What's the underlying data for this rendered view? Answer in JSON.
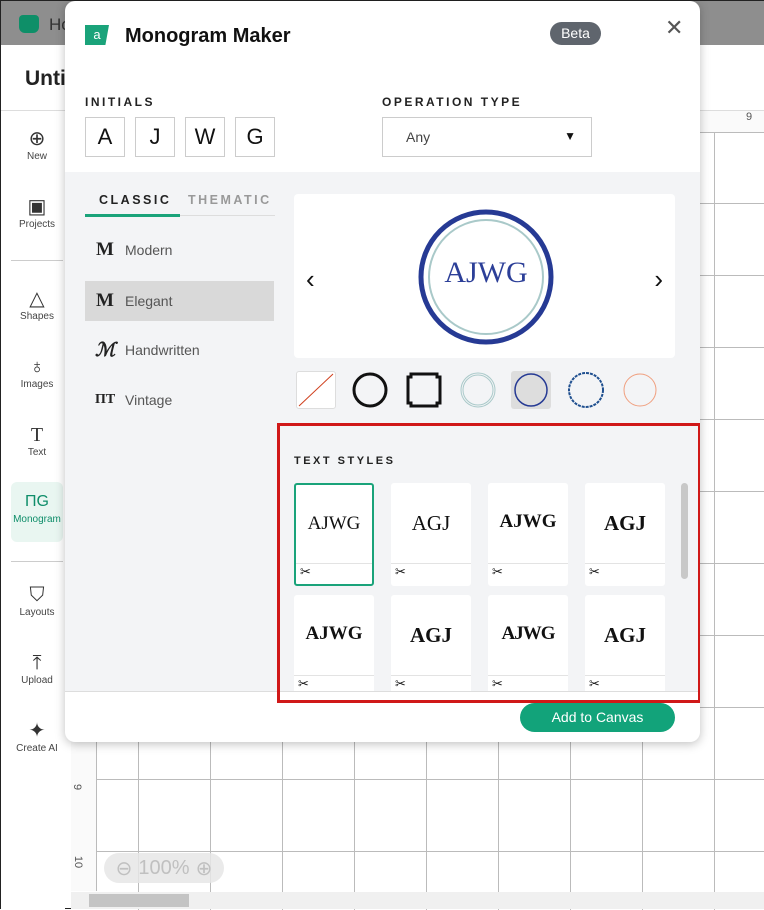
{
  "app": {
    "home_label": "Ho",
    "doc_title": "Unti",
    "ruler_top": "9",
    "ruler_left": [
      "9",
      "10"
    ],
    "zoom_level": "100%"
  },
  "sidebar": {
    "items": [
      {
        "label": "New",
        "icon": "plus-circle-icon"
      },
      {
        "label": "Projects",
        "icon": "projects-icon"
      },
      {
        "label": "Shapes",
        "icon": "shapes-icon"
      },
      {
        "label": "Images",
        "icon": "balloon-icon"
      },
      {
        "label": "Text",
        "icon": "text-icon"
      },
      {
        "label": "Monogram",
        "icon": "monogram-icon",
        "active": true
      },
      {
        "label": "Layouts",
        "icon": "tshirt-icon"
      },
      {
        "label": "Upload",
        "icon": "upload-icon"
      },
      {
        "label": "Create AI",
        "icon": "sparkle-icon"
      }
    ]
  },
  "modal": {
    "title": "Monogram Maker",
    "badge": "Beta",
    "initials_label": "INITIALS",
    "initials": [
      "A",
      "J",
      "W",
      "G"
    ],
    "operation_label": "OPERATION TYPE",
    "operation_value": "Any",
    "tabs": [
      "CLASSIC",
      "THEMATIC"
    ],
    "categories": [
      {
        "label": "Modern",
        "icon": "M"
      },
      {
        "label": "Elegant",
        "icon": "M",
        "selected": true
      },
      {
        "label": "Handwritten",
        "icon": "ℳ"
      },
      {
        "label": "Vintage",
        "icon": "ΠΤ"
      }
    ],
    "preview_text": "AJWG",
    "preview_colors": {
      "outer": "#263a94",
      "inner": "#a9c9c9",
      "text": "#2c3f98"
    },
    "text_styles_label": "TEXT STYLES",
    "text_styles": [
      "AJWG",
      "AGJ",
      "AJWG",
      "AGJ",
      "AJWG",
      "AGJ",
      "AJWG",
      "AGJ"
    ],
    "add_button": "Add to Canvas",
    "accent": "#12a37a"
  }
}
